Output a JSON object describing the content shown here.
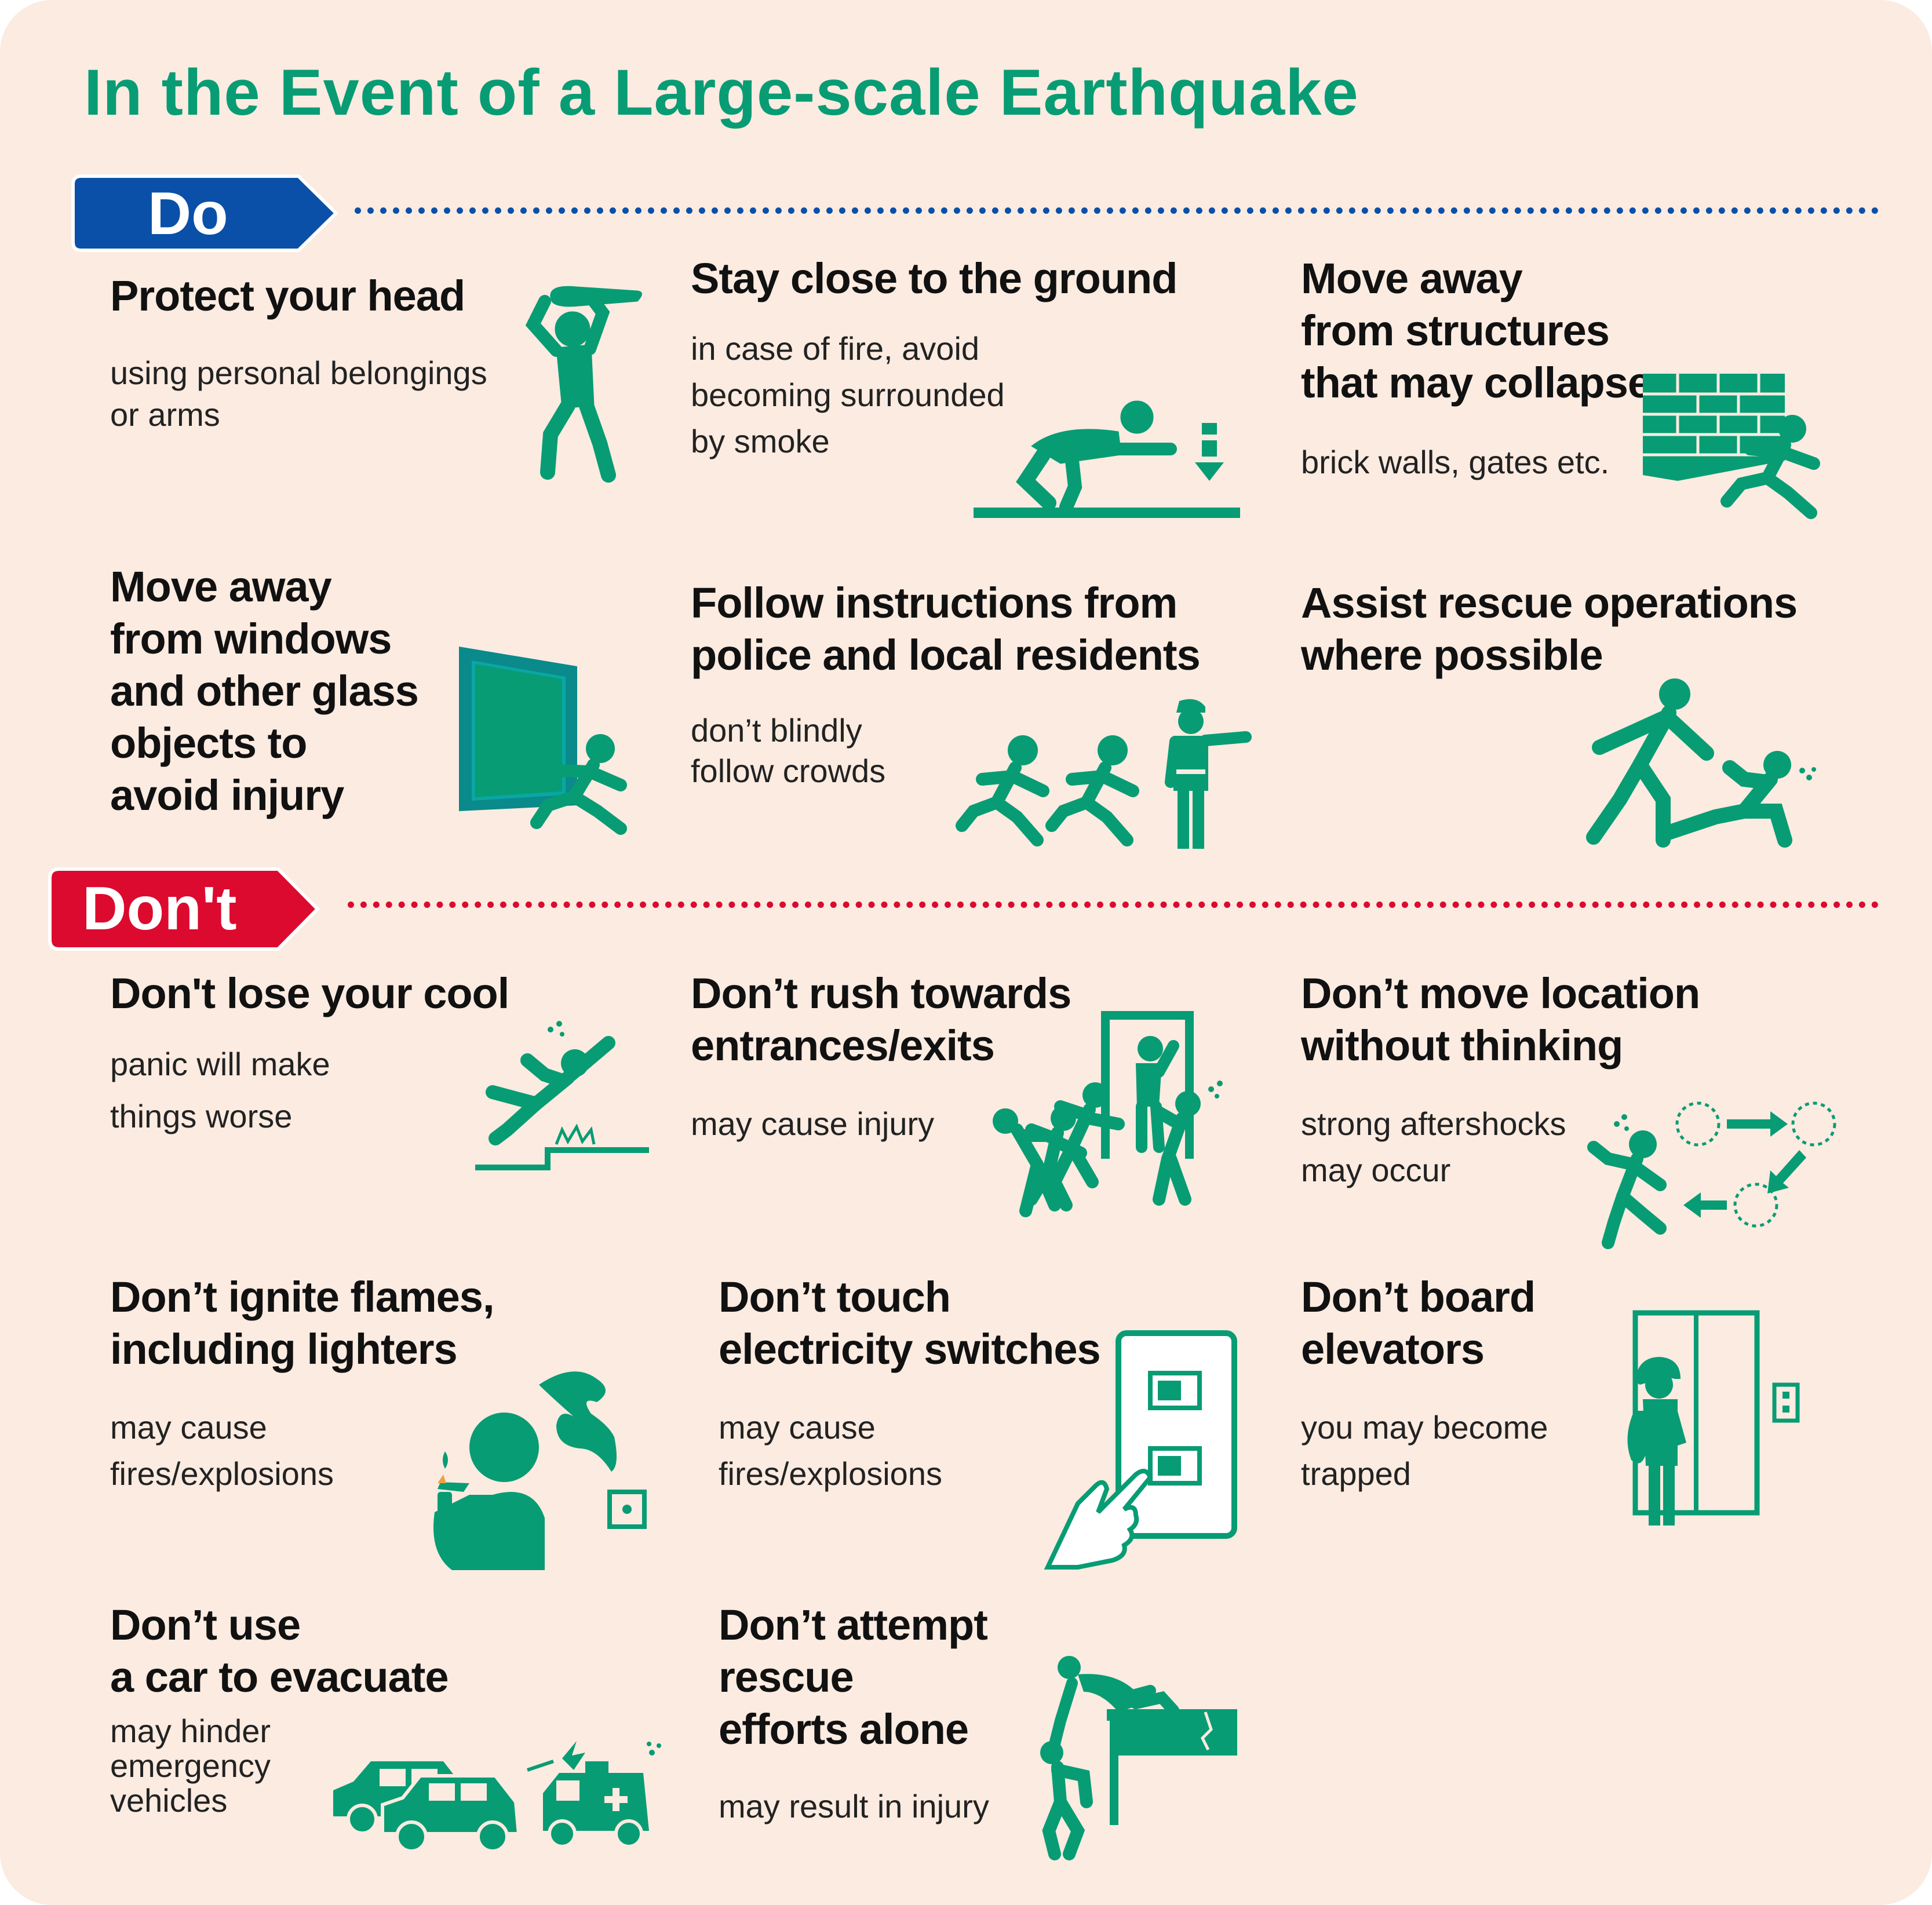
{
  "title": "In the Event of a Large-scale Earthquake",
  "colors": {
    "background": "#fbebe1",
    "accent_green": "#089c74",
    "do_blue": "#0a50a8",
    "dont_red": "#dc0a2e"
  },
  "do_section": {
    "label": "Do",
    "items": [
      {
        "heading": [
          "Protect your head"
        ],
        "detail": [
          "using personal belongings",
          "or arms"
        ],
        "icon": "person-protecting-head-icon"
      },
      {
        "heading": [
          "Stay close to the ground"
        ],
        "detail": [
          "in case of fire, avoid",
          "becoming surrounded",
          "by smoke"
        ],
        "icon": "crawling-person-icon"
      },
      {
        "heading": [
          "Move away",
          "from structures",
          "that may collapse"
        ],
        "detail": [
          "brick walls, gates etc."
        ],
        "icon": "collapsing-wall-icon"
      },
      {
        "heading": [
          "Move away",
          "from windows",
          "and other glass",
          "objects to",
          "avoid injury"
        ],
        "detail": [],
        "icon": "falling-window-icon"
      },
      {
        "heading": [
          "Follow instructions from",
          "police and local residents"
        ],
        "detail": [
          "don’t blindly",
          "follow crowds"
        ],
        "icon": "police-directing-icon"
      },
      {
        "heading": [
          "Assist rescue operations",
          "where possible"
        ],
        "detail": [],
        "icon": "helping-person-icon"
      }
    ]
  },
  "dont_section": {
    "label": "Don't",
    "items": [
      {
        "heading": [
          "Don't lose your cool"
        ],
        "detail": [
          "panic will make",
          "things worse"
        ],
        "icon": "falling-person-icon"
      },
      {
        "heading": [
          "Don’t rush towards",
          "entrances/exits"
        ],
        "detail": [
          "may cause injury"
        ],
        "icon": "crowd-at-exit-icon"
      },
      {
        "heading": [
          "Don’t move location",
          "without thinking"
        ],
        "detail": [
          "strong aftershocks",
          "may occur"
        ],
        "icon": "running-cycle-icon"
      },
      {
        "heading": [
          "Don’t ignite flames,",
          "including lighters"
        ],
        "detail": [
          "may cause",
          "fires/explosions"
        ],
        "icon": "lighter-gas-icon"
      },
      {
        "heading": [
          "Don’t touch",
          "electricity switches"
        ],
        "detail": [
          "may cause",
          "fires/explosions"
        ],
        "icon": "light-switch-icon"
      },
      {
        "heading": [
          "Don’t board",
          "elevators"
        ],
        "detail": [
          "you may become",
          "trapped"
        ],
        "icon": "elevator-icon"
      },
      {
        "heading": [
          "Don’t use",
          "a car to evacuate"
        ],
        "detail": [
          "may hinder",
          "emergency",
          "vehicles"
        ],
        "icon": "cars-ambulance-icon"
      },
      {
        "heading": [
          "Don’t attempt",
          "rescue",
          "efforts alone"
        ],
        "detail": [
          "may result in injury"
        ],
        "icon": "climbing-rescue-icon"
      }
    ]
  }
}
